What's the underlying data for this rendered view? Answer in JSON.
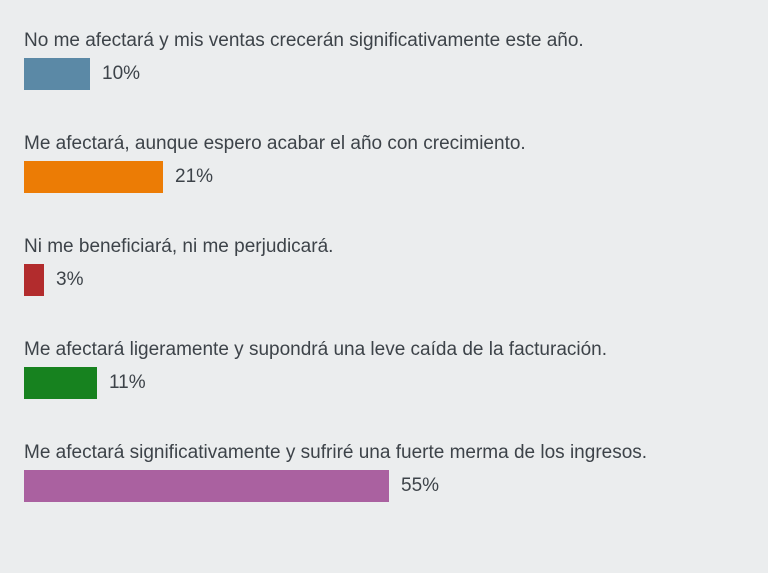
{
  "page": {
    "background_color": "#ebedee",
    "text_color": "#3d4349"
  },
  "chart_data": {
    "type": "bar",
    "orientation": "horizontal",
    "title": "",
    "xlabel": "",
    "ylabel": "",
    "xlim": [
      0,
      100
    ],
    "unit": "%",
    "grid": false,
    "legend": false,
    "categories": [
      "No me afectará y mis ventas crecerán significativamente este año.",
      "Me afectará, aunque espero acabar el año con crecimiento.",
      "Ni me beneficiará, ni me perjudicará.",
      "Me afectará ligeramente y supondrá una leve caída de la facturación.",
      "Me afectará significativamente y sufriré una fuerte merma de los ingresos."
    ],
    "values": [
      10,
      21,
      3,
      11,
      55
    ],
    "value_labels": [
      "10%",
      "21%",
      "3%",
      "11%",
      "55%"
    ],
    "colors": [
      "#5b89a6",
      "#ec7c05",
      "#b22c2d",
      "#17821f",
      "#aa61a0"
    ]
  }
}
